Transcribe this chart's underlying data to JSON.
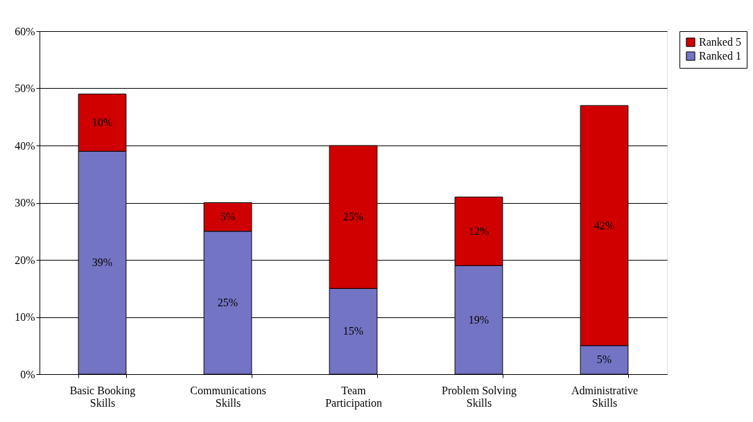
{
  "chart_data": {
    "type": "bar",
    "stacked": true,
    "categories": [
      "Basic Booking\nSkills",
      "Communications\nSkills",
      "Team\nParticipation",
      "Problem Solving\nSkills",
      "Administrative\nSkills"
    ],
    "series": [
      {
        "name": "Ranked 1",
        "color": "#7474c4",
        "values": [
          39,
          25,
          15,
          19,
          5
        ],
        "value_labels": [
          "39%",
          "25%",
          "15%",
          "19%",
          "5%"
        ]
      },
      {
        "name": "Ranked 5",
        "color": "#d00000",
        "values": [
          10,
          5,
          25,
          12,
          42
        ],
        "value_labels": [
          "10%",
          "5%",
          "25%",
          "12%",
          "42%"
        ]
      }
    ],
    "ylim": [
      0,
      60
    ],
    "yticks": [
      {
        "value": 0,
        "label": "0%"
      },
      {
        "value": 10,
        "label": "10%"
      },
      {
        "value": 20,
        "label": "20%"
      },
      {
        "value": 30,
        "label": "30%"
      },
      {
        "value": 40,
        "label": "40%"
      },
      {
        "value": 50,
        "label": "50%"
      },
      {
        "value": 60,
        "label": "60%"
      }
    ],
    "grid": "y",
    "legend": "right"
  }
}
